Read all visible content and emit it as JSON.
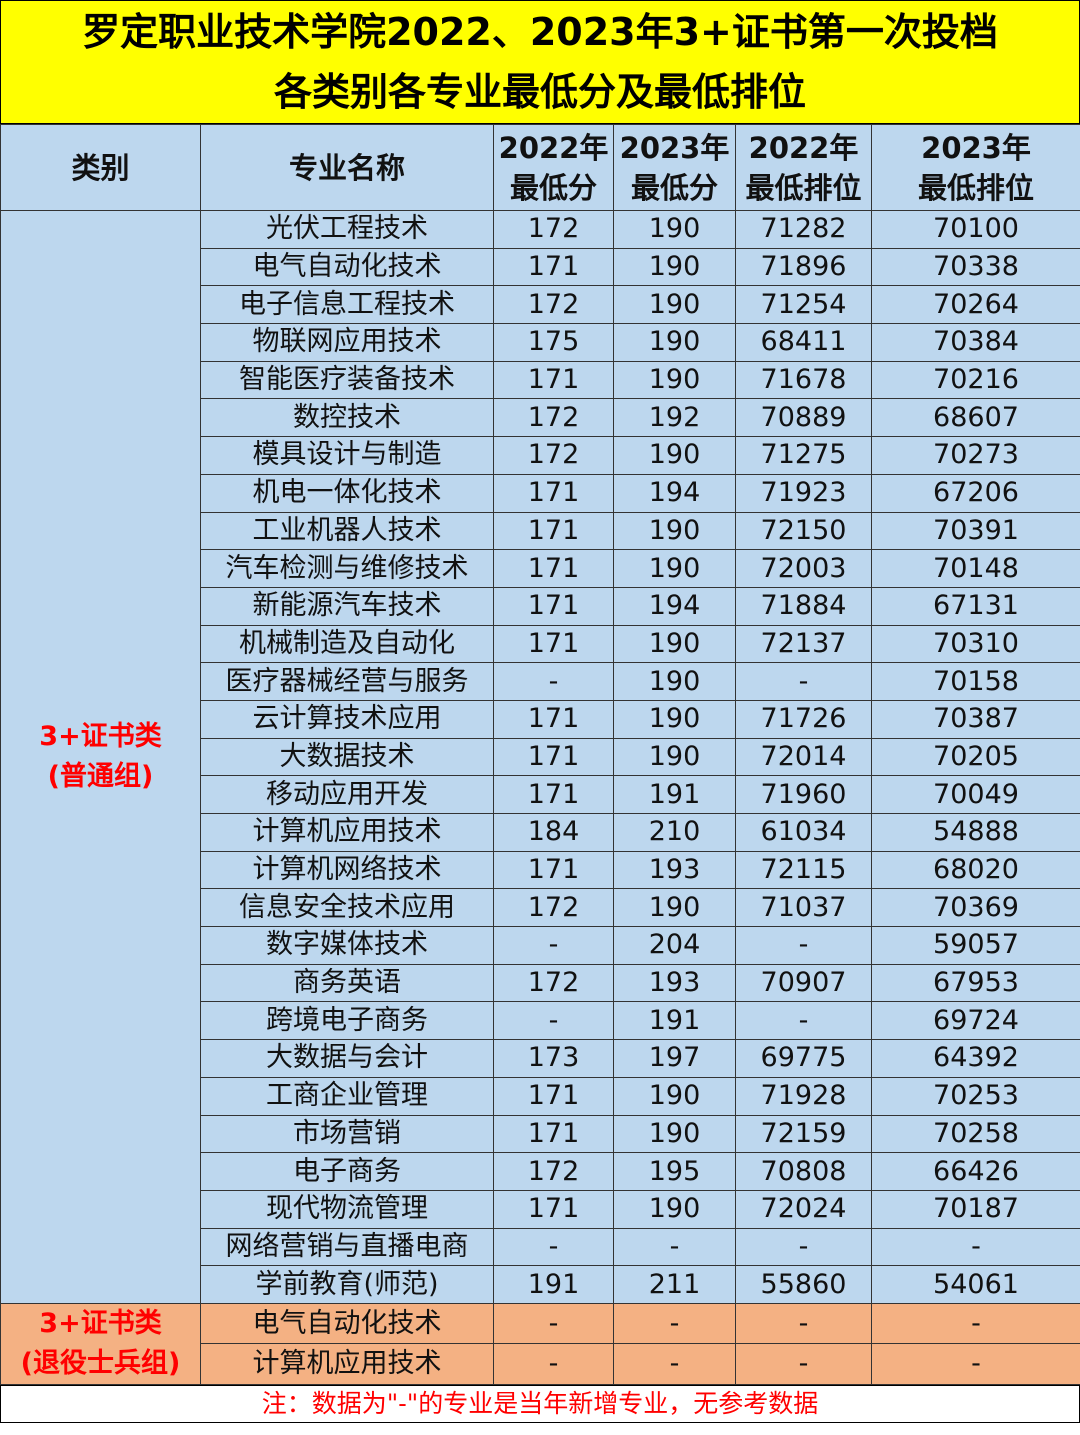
{
  "title": {
    "line1": "罗定职业技术学院2022、2023年3+证书第一次投档",
    "line2": "各类别各专业最低分及最低排位"
  },
  "headers": {
    "category": "类别",
    "major": "专业名称",
    "score2022": [
      "2022年",
      "最低分"
    ],
    "score2023": [
      "2023年",
      "最低分"
    ],
    "rank2022": [
      "2022年",
      "最低排位"
    ],
    "rank2023": [
      "2023年",
      "最低排位"
    ]
  },
  "groups": [
    {
      "category": [
        "3+证书类",
        "(普通组)"
      ],
      "color": "#bdd7ee",
      "rows": [
        [
          "光伏工程技术",
          "172",
          "190",
          "71282",
          "70100"
        ],
        [
          "电气自动化技术",
          "171",
          "190",
          "71896",
          "70338"
        ],
        [
          "电子信息工程技术",
          "172",
          "190",
          "71254",
          "70264"
        ],
        [
          "物联网应用技术",
          "175",
          "190",
          "68411",
          "70384"
        ],
        [
          "智能医疗装备技术",
          "171",
          "190",
          "71678",
          "70216"
        ],
        [
          "数控技术",
          "172",
          "192",
          "70889",
          "68607"
        ],
        [
          "模具设计与制造",
          "172",
          "190",
          "71275",
          "70273"
        ],
        [
          "机电一体化技术",
          "171",
          "194",
          "71923",
          "67206"
        ],
        [
          "工业机器人技术",
          "171",
          "190",
          "72150",
          "70391"
        ],
        [
          "汽车检测与维修技术",
          "171",
          "190",
          "72003",
          "70148"
        ],
        [
          "新能源汽车技术",
          "171",
          "194",
          "71884",
          "67131"
        ],
        [
          "机械制造及自动化",
          "171",
          "190",
          "72137",
          "70310"
        ],
        [
          "医疗器械经营与服务",
          "-",
          "190",
          "-",
          "70158"
        ],
        [
          "云计算技术应用",
          "171",
          "190",
          "71726",
          "70387"
        ],
        [
          "大数据技术",
          "171",
          "190",
          "72014",
          "70205"
        ],
        [
          "移动应用开发",
          "171",
          "191",
          "71960",
          "70049"
        ],
        [
          "计算机应用技术",
          "184",
          "210",
          "61034",
          "54888"
        ],
        [
          "计算机网络技术",
          "171",
          "193",
          "72115",
          "68020"
        ],
        [
          "信息安全技术应用",
          "172",
          "190",
          "71037",
          "70369"
        ],
        [
          "数字媒体技术",
          "-",
          "204",
          "-",
          "59057"
        ],
        [
          "商务英语",
          "172",
          "193",
          "70907",
          "67953"
        ],
        [
          "跨境电子商务",
          "-",
          "191",
          "-",
          "69724"
        ],
        [
          "大数据与会计",
          "173",
          "197",
          "69775",
          "64392"
        ],
        [
          "工商企业管理",
          "171",
          "190",
          "71928",
          "70253"
        ],
        [
          "市场营销",
          "171",
          "190",
          "72159",
          "70258"
        ],
        [
          "电子商务",
          "172",
          "195",
          "70808",
          "66426"
        ],
        [
          "现代物流管理",
          "171",
          "190",
          "72024",
          "70187"
        ],
        [
          "网络营销与直播电商",
          "-",
          "-",
          "-",
          "-"
        ],
        [
          "学前教育(师范)",
          "191",
          "211",
          "55860",
          "54061"
        ]
      ]
    },
    {
      "category": [
        "3+证书类",
        "(退役士兵组)"
      ],
      "color": "#f4b183",
      "rows": [
        [
          "电气自动化技术",
          "-",
          "-",
          "-",
          "-"
        ],
        [
          "计算机应用技术",
          "-",
          "-",
          "-",
          "-"
        ]
      ]
    }
  ],
  "note": "注：数据为\"-\"的专业是当年新增专业，无参考数据",
  "colors": {
    "title_bg": "#ffff00",
    "note_text": "#ff0000",
    "category_text": "#ff0000"
  }
}
